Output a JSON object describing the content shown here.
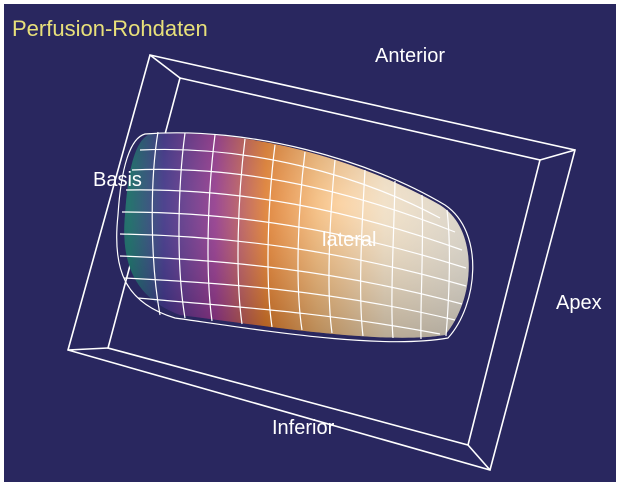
{
  "viewer": {
    "title": "Perfusion-Rohdaten",
    "labels": {
      "anterior": "Anterior",
      "basis": "Basis",
      "lateral": "lateral",
      "apex": "Apex",
      "inferior": "Inferior"
    }
  },
  "colors": {
    "background": "#29275f",
    "frame": "#ffffff",
    "title": "#e8e07a",
    "label": "#ffffff",
    "perfusion_low": "#1f8f8a",
    "perfusion_mid": "#8a2d9e",
    "perfusion_high": "#f07818",
    "perfusion_max": "#fff8ea"
  }
}
